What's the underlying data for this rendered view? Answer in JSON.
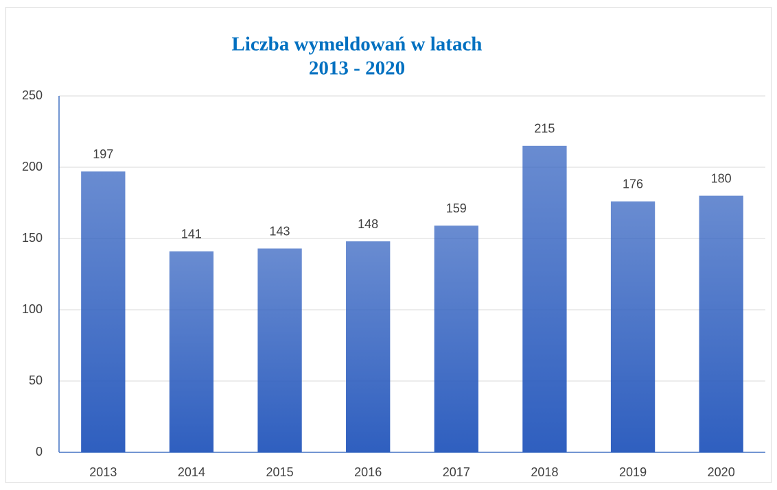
{
  "chart_data": {
    "type": "bar",
    "title": [
      "Liczba wymeldowań w latach",
      "2013 - 2020"
    ],
    "categories": [
      "2013",
      "2014",
      "2015",
      "2016",
      "2017",
      "2018",
      "2019",
      "2020"
    ],
    "values": [
      197,
      141,
      143,
      148,
      159,
      215,
      176,
      180
    ],
    "color": "#2f5fbf",
    "ylim": [
      0,
      250
    ],
    "yticks": [
      0,
      50,
      100,
      150,
      200,
      250
    ],
    "grid": true
  }
}
